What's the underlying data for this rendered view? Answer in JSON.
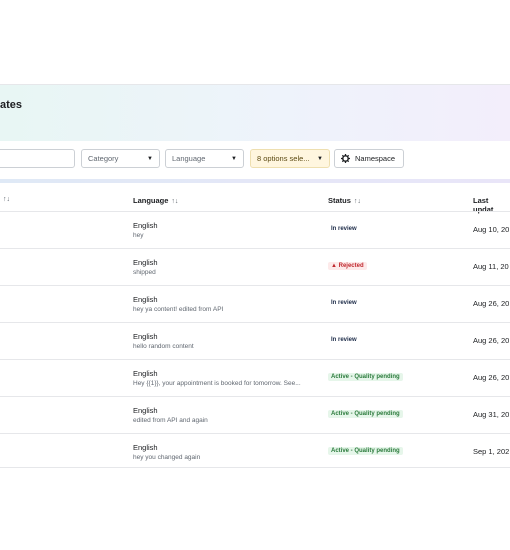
{
  "header": {
    "title": "ates"
  },
  "toolbar": {
    "category_label": "Category",
    "language_label": "Language",
    "options_label": "8 options sele...",
    "namespace_label": "Namespace"
  },
  "table": {
    "left_cut_header_sort": "↑↓",
    "columns": [
      {
        "label": "Language",
        "sort": "↑↓"
      },
      {
        "label": "Status",
        "sort": "↑↓"
      },
      {
        "label": "Last updat"
      }
    ],
    "rows": [
      {
        "language": "English",
        "content": "hey",
        "status": "In review",
        "status_type": "review",
        "date": "Aug 10, 20"
      },
      {
        "language": "English",
        "content": "shipped",
        "status": "Rejected",
        "status_type": "rejected",
        "date": "Aug 11, 20"
      },
      {
        "language": "English",
        "content": "hey ya content! edited from API",
        "status": "In review",
        "status_type": "review",
        "date": "Aug 26, 20"
      },
      {
        "language": "English",
        "content": "hello random content",
        "status": "In review",
        "status_type": "review",
        "date": "Aug 26, 20"
      },
      {
        "language": "English",
        "content": "Hey {{1}}, your appointment is booked for tomorrow. See...",
        "status": "Active - Quality pending",
        "status_type": "active",
        "date": "Aug 26, 20"
      },
      {
        "language": "English",
        "content": "edited from API and again",
        "status": "Active - Quality pending",
        "status_type": "active",
        "date": "Aug 31, 20"
      },
      {
        "language": "English",
        "content": "hey you changed again",
        "status": "Active - Quality pending",
        "status_type": "active",
        "date": "Sep 1, 202"
      }
    ]
  },
  "colors": {
    "rejected": "#c0282e",
    "active": "#2a7a3b",
    "review": "#1c2b48"
  }
}
